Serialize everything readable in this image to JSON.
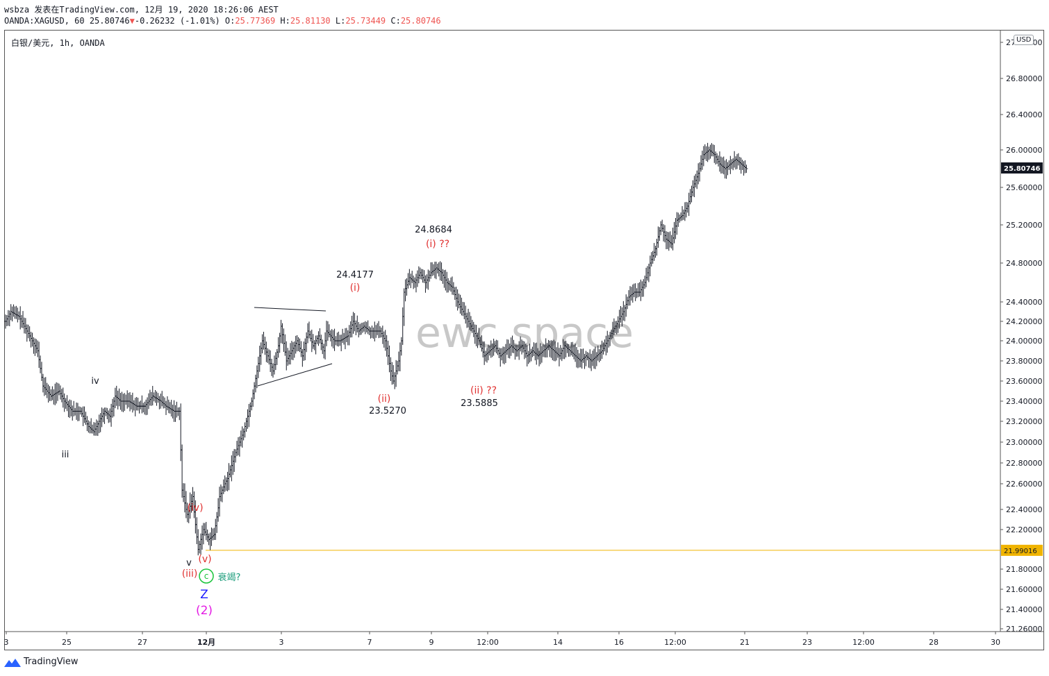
{
  "header": {
    "line1": "wsbza 发表在TradingView.com, 12月 19, 2020 18:26:06 AEST",
    "symbol": "OANDA:XAGUSD, 60",
    "last": "25.80746",
    "arrow": "▼",
    "change": "-0.26232 (-1.01%)",
    "o_label": "O:",
    "o_value": "25.77369",
    "h_label": "H:",
    "h_value": "25.81130",
    "l_label": "L:",
    "l_value": "25.73449",
    "c_label": "C:",
    "c_value": "25.80746"
  },
  "legend": "白银/美元, 1h, OANDA",
  "currency_button": "USD",
  "watermark": "ewc space",
  "footer_brand": "TradingView",
  "colors": {
    "candle": "#131722",
    "wave_red": "#e0302f",
    "wave_blue": "#1a1aff",
    "wave_magenta": "#e31ae3",
    "wave_green": "#18c43a",
    "support_line": "#f0b400",
    "last_price_bg": "#131722"
  },
  "chart_data": {
    "type": "candlestick",
    "symbol": "XAGUSD",
    "interval": "1h",
    "x_tick_labels": [
      "3",
      "25",
      "27",
      "12月",
      "3",
      "7",
      "9",
      "12:00",
      "14",
      "16",
      "12:00",
      "21",
      "23",
      "12:00",
      "28",
      "30"
    ],
    "y_tick_labels": [
      "27.00000",
      "26.80000",
      "26.40000",
      "26.00000",
      "25.60000",
      "25.20000",
      "24.80000",
      "24.40000",
      "24.20000",
      "24.00000",
      "23.80000",
      "23.60000",
      "23.40000",
      "23.20000",
      "23.00000",
      "22.80000",
      "22.60000",
      "22.40000",
      "22.20000",
      "21.80000",
      "21.60000",
      "21.40000",
      "21.26000"
    ],
    "ylim": [
      21.26,
      27.0
    ],
    "last_price_label": "25.80746",
    "support_level": 21.99016,
    "support_label": "21.99016",
    "approx_path": [
      [
        0,
        24.2
      ],
      [
        4,
        24.3
      ],
      [
        10,
        24.25
      ],
      [
        14,
        24.15
      ],
      [
        20,
        24.0
      ],
      [
        24,
        23.9
      ],
      [
        28,
        23.55
      ],
      [
        34,
        23.45
      ],
      [
        40,
        23.5
      ],
      [
        44,
        23.4
      ],
      [
        50,
        23.3
      ],
      [
        56,
        23.3
      ],
      [
        62,
        23.15
      ],
      [
        66,
        23.1
      ],
      [
        70,
        23.2
      ],
      [
        74,
        23.3
      ],
      [
        78,
        23.25
      ],
      [
        82,
        23.45
      ],
      [
        86,
        23.4
      ],
      [
        92,
        23.4
      ],
      [
        98,
        23.35
      ],
      [
        104,
        23.35
      ],
      [
        110,
        23.45
      ],
      [
        116,
        23.4
      ],
      [
        120,
        23.35
      ],
      [
        126,
        23.3
      ],
      [
        130,
        23.3
      ],
      [
        132,
        22.55
      ],
      [
        136,
        22.35
      ],
      [
        140,
        22.5
      ],
      [
        144,
        22.0
      ],
      [
        148,
        22.2
      ],
      [
        152,
        22.1
      ],
      [
        156,
        22.15
      ],
      [
        160,
        22.5
      ],
      [
        166,
        22.65
      ],
      [
        172,
        22.9
      ],
      [
        178,
        23.1
      ],
      [
        184,
        23.4
      ],
      [
        188,
        23.7
      ],
      [
        192,
        24.0
      ],
      [
        196,
        23.85
      ],
      [
        200,
        23.7
      ],
      [
        204,
        23.95
      ],
      [
        206,
        24.15
      ],
      [
        210,
        23.8
      ],
      [
        214,
        23.9
      ],
      [
        218,
        24.0
      ],
      [
        222,
        23.85
      ],
      [
        226,
        24.1
      ],
      [
        230,
        23.95
      ],
      [
        234,
        24.05
      ],
      [
        238,
        23.9
      ],
      [
        240,
        24.1
      ],
      [
        246,
        24.0
      ],
      [
        250,
        24.0
      ],
      [
        256,
        24.05
      ],
      [
        260,
        24.2
      ],
      [
        264,
        24.1
      ],
      [
        268,
        24.15
      ],
      [
        272,
        24.1
      ],
      [
        276,
        24.1
      ],
      [
        280,
        24.1
      ],
      [
        284,
        24.0
      ],
      [
        288,
        23.7
      ],
      [
        290,
        23.6
      ],
      [
        294,
        23.8
      ],
      [
        296,
        24.0
      ],
      [
        298,
        24.5
      ],
      [
        302,
        24.65
      ],
      [
        306,
        24.6
      ],
      [
        310,
        24.7
      ],
      [
        314,
        24.6
      ],
      [
        318,
        24.7
      ],
      [
        322,
        24.75
      ],
      [
        326,
        24.7
      ],
      [
        330,
        24.6
      ],
      [
        334,
        24.55
      ],
      [
        338,
        24.4
      ],
      [
        342,
        24.3
      ],
      [
        346,
        24.2
      ],
      [
        350,
        24.1
      ],
      [
        354,
        24.0
      ],
      [
        358,
        23.85
      ],
      [
        362,
        23.9
      ],
      [
        366,
        23.95
      ],
      [
        370,
        23.85
      ],
      [
        374,
        23.9
      ],
      [
        378,
        23.95
      ],
      [
        382,
        23.9
      ],
      [
        386,
        23.95
      ],
      [
        390,
        23.85
      ],
      [
        394,
        23.9
      ],
      [
        398,
        23.85
      ],
      [
        402,
        23.9
      ],
      [
        406,
        23.95
      ],
      [
        410,
        23.9
      ],
      [
        414,
        23.85
      ],
      [
        418,
        23.95
      ],
      [
        422,
        23.9
      ],
      [
        426,
        23.85
      ],
      [
        430,
        23.8
      ],
      [
        434,
        23.85
      ],
      [
        438,
        23.8
      ],
      [
        442,
        23.85
      ],
      [
        446,
        23.9
      ],
      [
        450,
        24.0
      ],
      [
        454,
        24.1
      ],
      [
        458,
        24.2
      ],
      [
        462,
        24.3
      ],
      [
        466,
        24.45
      ],
      [
        470,
        24.5
      ],
      [
        474,
        24.5
      ],
      [
        478,
        24.6
      ],
      [
        482,
        24.8
      ],
      [
        486,
        24.95
      ],
      [
        490,
        25.2
      ],
      [
        494,
        25.05
      ],
      [
        498,
        25.0
      ],
      [
        502,
        25.25
      ],
      [
        506,
        25.3
      ],
      [
        510,
        25.4
      ],
      [
        514,
        25.6
      ],
      [
        518,
        25.75
      ],
      [
        522,
        25.95
      ],
      [
        526,
        26.0
      ],
      [
        530,
        25.95
      ],
      [
        534,
        25.85
      ],
      [
        538,
        25.8
      ],
      [
        542,
        25.85
      ],
      [
        546,
        25.9
      ],
      [
        550,
        25.85
      ],
      [
        554,
        25.8
      ]
    ],
    "annotations": [
      {
        "text": "iii",
        "color": "#131722"
      },
      {
        "text": "iv",
        "color": "#131722"
      },
      {
        "text": "v",
        "color": "#131722"
      },
      {
        "text": "(iii)",
        "color": "#e0302f"
      },
      {
        "text": "(iv)",
        "color": "#e0302f"
      },
      {
        "text": "(v)",
        "color": "#e0302f"
      },
      {
        "text": "c",
        "color": "#18c43a"
      },
      {
        "text": "衰竭?",
        "color": "#1a9c7a"
      },
      {
        "text": "Z",
        "color": "#1a1aff"
      },
      {
        "text": "(2)",
        "color": "#e31ae3"
      },
      {
        "text": "24.4177",
        "color": "#131722"
      },
      {
        "text": "(i)",
        "color": "#e0302f"
      },
      {
        "text": "(ii)",
        "color": "#e0302f"
      },
      {
        "text": "23.5270",
        "color": "#131722"
      },
      {
        "text": "24.8684",
        "color": "#131722"
      },
      {
        "text": "(i) ??",
        "color": "#e0302f"
      },
      {
        "text": "(ii) ??",
        "color": "#e0302f"
      },
      {
        "text": "23.5885",
        "color": "#131722"
      }
    ]
  }
}
